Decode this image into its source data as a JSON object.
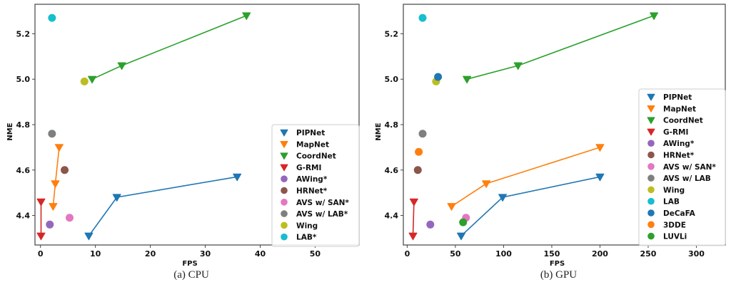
{
  "chart_data": [
    {
      "type": "scatter",
      "id": "cpu",
      "caption": "(a) CPU",
      "title": "",
      "xlabel": "FPS",
      "ylabel": "NME",
      "xlim": [
        -1,
        58
      ],
      "ylim": [
        4.27,
        5.33
      ],
      "xticks": [
        0,
        10,
        20,
        30,
        40,
        50
      ],
      "yticks": [
        4.4,
        4.6,
        4.8,
        5.0,
        5.2
      ],
      "legend_position": "center-right",
      "series": [
        {
          "name": "PIPNet",
          "color": "#1f77b4",
          "marker": "triangle-down",
          "line": true,
          "points": [
            [
              8.8,
              4.31
            ],
            [
              13.9,
              4.48
            ],
            [
              35.8,
              4.57
            ]
          ]
        },
        {
          "name": "MapNet",
          "color": "#ff7f0e",
          "marker": "triangle-down",
          "line": true,
          "points": [
            [
              2.3,
              4.44
            ],
            [
              2.7,
              4.54
            ],
            [
              3.4,
              4.7
            ]
          ]
        },
        {
          "name": "CoordNet",
          "color": "#2ca02c",
          "marker": "triangle-down",
          "line": true,
          "points": [
            [
              9.4,
              5.0
            ],
            [
              14.8,
              5.06
            ],
            [
              37.5,
              5.28
            ]
          ]
        },
        {
          "name": "G-RMI",
          "color": "#d62728",
          "marker": "triangle-down",
          "line": true,
          "points": [
            [
              0.1,
              4.31
            ],
            [
              0.1,
              4.46
            ]
          ]
        },
        {
          "name": "AWing*",
          "color": "#9467bd",
          "marker": "circle",
          "line": false,
          "points": [
            [
              1.7,
              4.36
            ]
          ]
        },
        {
          "name": "HRNet*",
          "color": "#8c564b",
          "marker": "circle",
          "line": false,
          "points": [
            [
              4.4,
              4.6
            ]
          ]
        },
        {
          "name": "AVS w/ SAN*",
          "color": "#e377c2",
          "marker": "circle",
          "line": false,
          "points": [
            [
              5.3,
              4.39
            ]
          ]
        },
        {
          "name": "AVS w/ LAB*",
          "color": "#7f7f7f",
          "marker": "circle",
          "line": false,
          "points": [
            [
              2.1,
              4.76
            ]
          ]
        },
        {
          "name": "Wing",
          "color": "#bcbd22",
          "marker": "circle",
          "line": false,
          "points": [
            [
              8.0,
              4.99
            ]
          ]
        },
        {
          "name": "LAB*",
          "color": "#17becf",
          "marker": "circle",
          "line": false,
          "points": [
            [
              2.1,
              5.27
            ]
          ]
        }
      ]
    },
    {
      "type": "scatter",
      "id": "gpu",
      "caption": "(b) GPU",
      "title": "",
      "xlabel": "FPS",
      "ylabel": "NME",
      "xlim": [
        -4,
        330
      ],
      "ylim": [
        4.27,
        5.33
      ],
      "xticks": [
        0,
        50,
        100,
        150,
        200,
        250,
        300
      ],
      "yticks": [
        4.4,
        4.6,
        4.8,
        5.0,
        5.2
      ],
      "legend_position": "center-right",
      "series": [
        {
          "name": "PIPNet",
          "color": "#1f77b4",
          "marker": "triangle-down",
          "line": true,
          "points": [
            [
              56,
              4.31
            ],
            [
              99,
              4.48
            ],
            [
              200,
              4.57
            ]
          ]
        },
        {
          "name": "MapNet",
          "color": "#ff7f0e",
          "marker": "triangle-down",
          "line": true,
          "points": [
            [
              46,
              4.44
            ],
            [
              82,
              4.54
            ],
            [
              200,
              4.7
            ]
          ]
        },
        {
          "name": "CoordNet",
          "color": "#2ca02c",
          "marker": "triangle-down",
          "line": true,
          "points": [
            [
              62,
              5.0
            ],
            [
              115,
              5.06
            ],
            [
              256,
              5.28
            ]
          ]
        },
        {
          "name": "G-RMI",
          "color": "#d62728",
          "marker": "triangle-down",
          "line": true,
          "points": [
            [
              6,
              4.31
            ],
            [
              7,
              4.46
            ]
          ]
        },
        {
          "name": "AWing*",
          "color": "#9467bd",
          "marker": "circle",
          "line": false,
          "points": [
            [
              24,
              4.36
            ]
          ]
        },
        {
          "name": "HRNet*",
          "color": "#8c564b",
          "marker": "circle",
          "line": false,
          "points": [
            [
              11,
              4.6
            ]
          ]
        },
        {
          "name": "AVS w/ SAN*",
          "color": "#e377c2",
          "marker": "circle",
          "line": false,
          "points": [
            [
              61,
              4.39
            ]
          ]
        },
        {
          "name": "AVS w/ LAB",
          "color": "#7f7f7f",
          "marker": "circle",
          "line": false,
          "points": [
            [
              16,
              4.76
            ]
          ]
        },
        {
          "name": "Wing",
          "color": "#bcbd22",
          "marker": "circle",
          "line": false,
          "points": [
            [
              30,
              4.99
            ]
          ]
        },
        {
          "name": "LAB",
          "color": "#17becf",
          "marker": "circle",
          "line": false,
          "points": [
            [
              16,
              5.27
            ]
          ]
        },
        {
          "name": "DeCaFA",
          "color": "#1f77b4",
          "marker": "circle",
          "line": false,
          "points": [
            [
              32,
              5.01
            ]
          ]
        },
        {
          "name": "3DDE",
          "color": "#ff7f0e",
          "marker": "circle",
          "line": false,
          "points": [
            [
              12,
              4.68
            ]
          ]
        },
        {
          "name": "LUVLi",
          "color": "#2ca02c",
          "marker": "circle",
          "line": false,
          "points": [
            [
              58,
              4.37
            ]
          ]
        }
      ]
    }
  ]
}
